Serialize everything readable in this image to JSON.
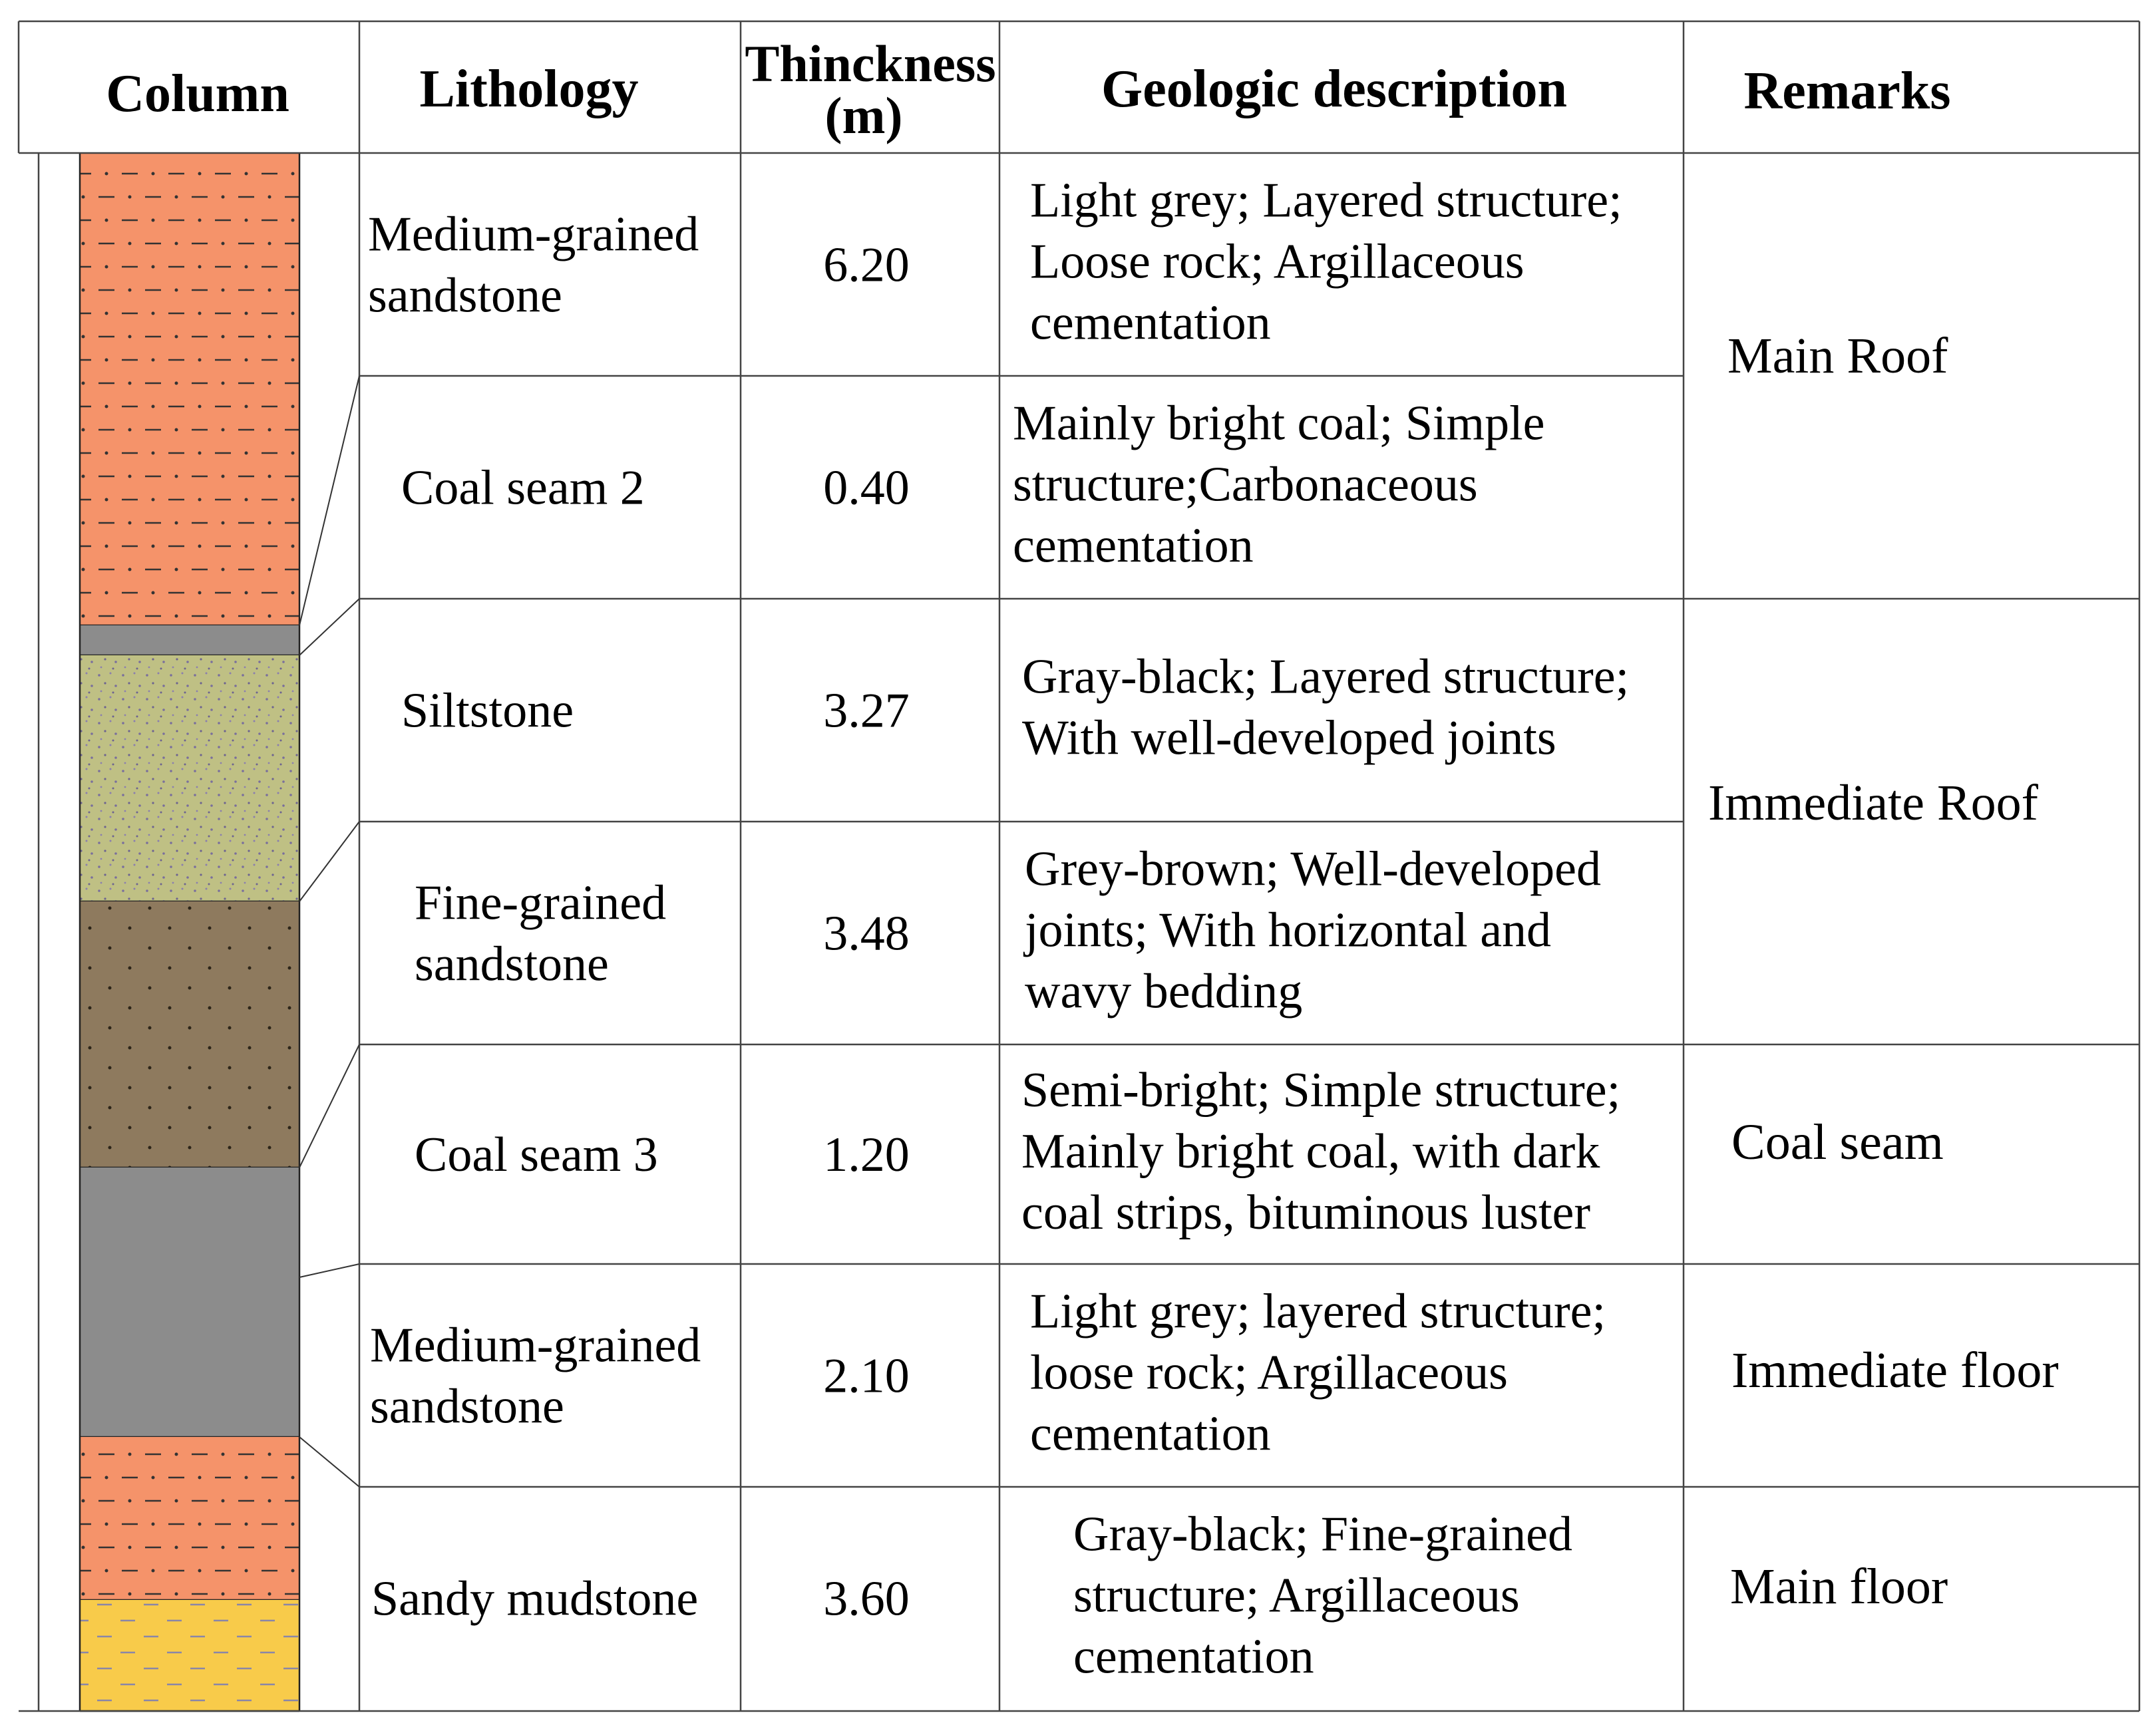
{
  "headers": {
    "column": "Column",
    "lithology": "Lithology",
    "thickness_line1": "Thinckness",
    "thickness_line2": "(m)",
    "description": "Geologic description",
    "remarks": "Remarks"
  },
  "rows": [
    {
      "lithology": [
        "Medium-grained",
        "sandstone"
      ],
      "thickness": "6.20",
      "description": [
        "Light grey; Layered structure;",
        "Loose rock; Argillaceous",
        "cementation"
      ],
      "color": "#F5936A"
    },
    {
      "lithology": [
        "Coal seam 2"
      ],
      "thickness": "0.40",
      "description": [
        "Mainly bright coal; Simple",
        "structure;Carbonaceous",
        "cementation"
      ],
      "color": "#8C8C8C"
    },
    {
      "lithology": [
        "Siltstone"
      ],
      "thickness": "3.27",
      "description": [
        "Gray-black; Layered structure;",
        "With well-developed joints"
      ],
      "color": "#BFC084"
    },
    {
      "lithology": [
        "Fine-grained",
        "sandstone"
      ],
      "thickness": "3.48",
      "description": [
        "Grey-brown; Well-developed",
        "joints; With horizontal and",
        "wavy bedding"
      ],
      "color": "#8E7A5E"
    },
    {
      "lithology": [
        "Coal seam 3"
      ],
      "thickness": "1.20",
      "description": [
        "Semi-bright; Simple structure;",
        "Mainly bright coal, with dark",
        "coal strips, bituminous luster"
      ],
      "color": "#8C8C8C"
    },
    {
      "lithology": [
        "Medium-grained",
        "sandstone"
      ],
      "thickness": "2.10",
      "description": [
        "Light grey; layered structure;",
        "loose rock; Argillaceous",
        "cementation"
      ],
      "color": "#F5936A"
    },
    {
      "lithology": [
        "Sandy mudstone"
      ],
      "thickness": "3.60",
      "description": [
        "Gray-black; Fine-grained",
        "structure; Argillaceous",
        "cementation"
      ],
      "color": "#F8CB4A"
    }
  ],
  "remarks": [
    {
      "label": "Main Roof"
    },
    {
      "label": "Immediate Roof"
    },
    {
      "label": "Coal seam"
    },
    {
      "label": "Immediate floor"
    },
    {
      "label": "Main floor"
    }
  ]
}
